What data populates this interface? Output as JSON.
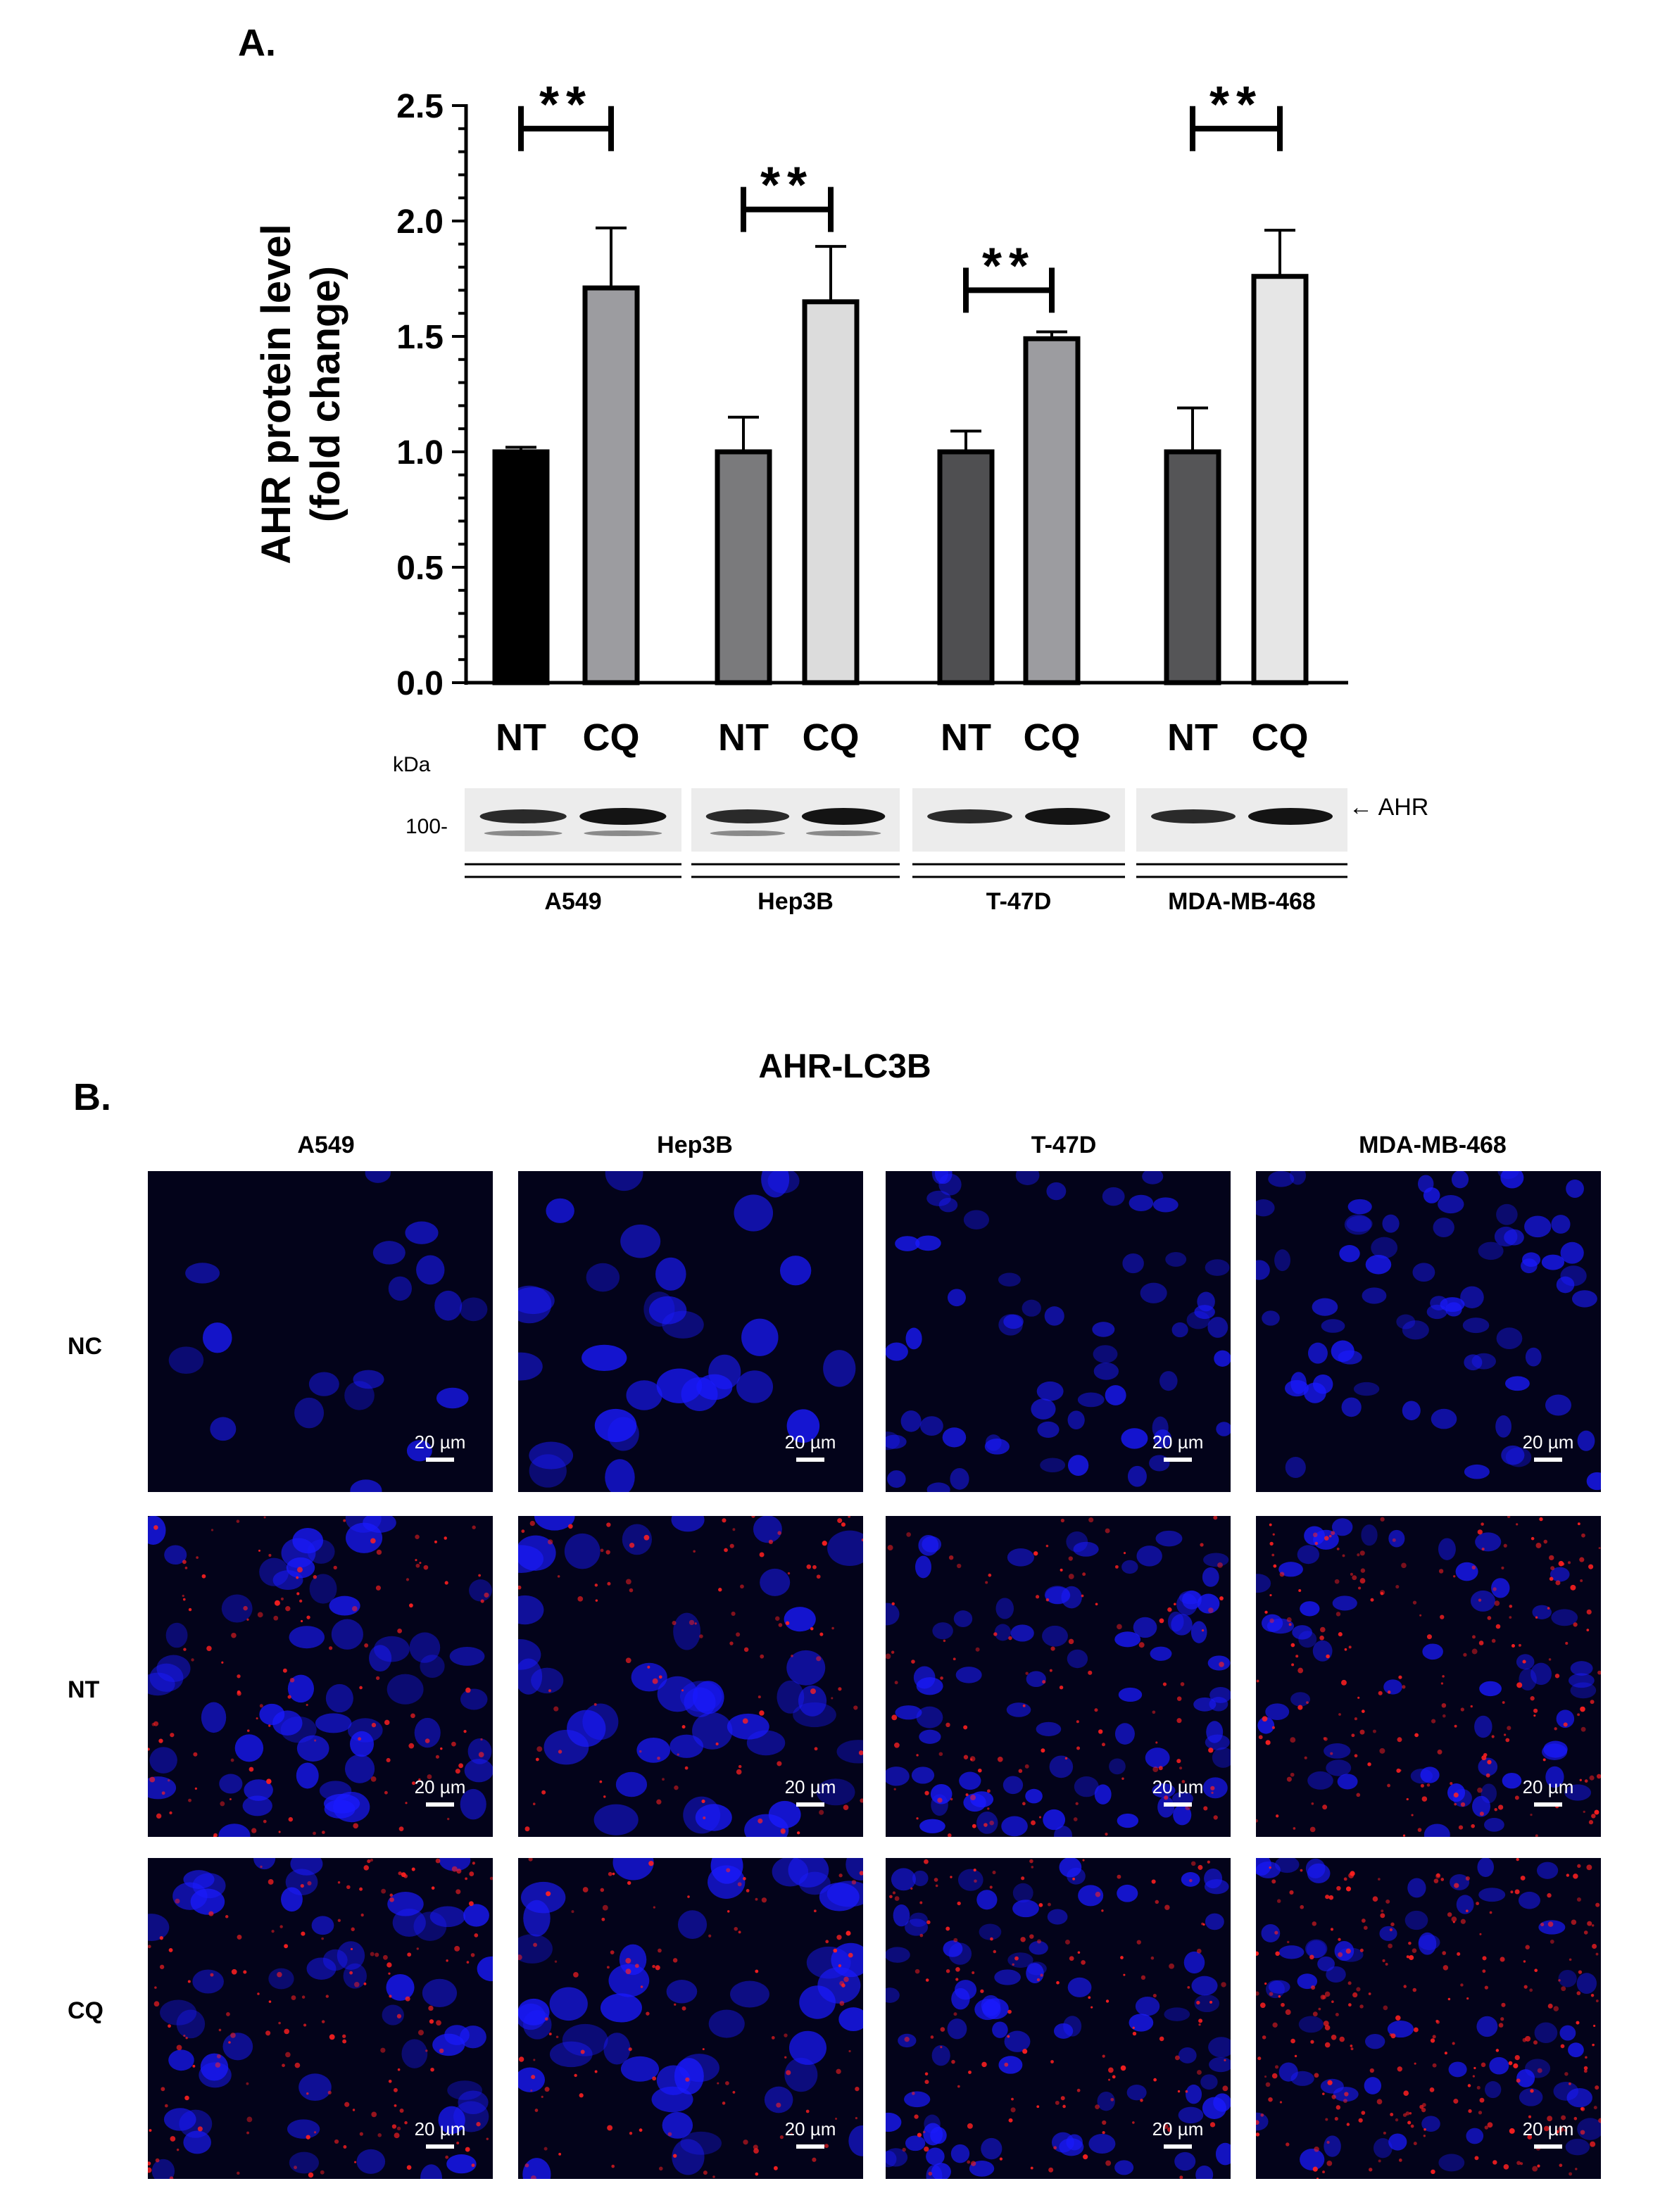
{
  "panel_a_label": "A.",
  "panel_b_label": "B.",
  "chart_data": {
    "type": "bar",
    "ylabel_line1": "AHR protein level",
    "ylabel_line2": "(fold change)",
    "ylim": [
      0,
      2.5
    ],
    "yticks": [
      "0.0",
      "0.5",
      "1.0",
      "1.5",
      "2.0",
      "2.5"
    ],
    "groups": [
      "A549",
      "Hep3B",
      "T-47D",
      "MDA-MB-468"
    ],
    "categories": [
      "NT",
      "CQ",
      "NT",
      "CQ",
      "NT",
      "CQ",
      "NT",
      "CQ"
    ],
    "values": [
      1.0,
      1.71,
      1.0,
      1.65,
      1.0,
      1.49,
      1.0,
      1.76
    ],
    "errors": [
      0.02,
      0.26,
      0.15,
      0.24,
      0.09,
      0.03,
      0.19,
      0.2
    ],
    "colors": [
      "#000000",
      "#9c9ca0",
      "#7a7a7c",
      "#dcdcdc",
      "#4f4f51",
      "#9c9ca0",
      "#555557",
      "#e6e6e6"
    ],
    "significance": [
      {
        "from": 0,
        "to": 1,
        "label": "**",
        "y": 2.4
      },
      {
        "from": 2,
        "to": 3,
        "label": "**",
        "y": 2.05
      },
      {
        "from": 4,
        "to": 5,
        "label": "**",
        "y": 1.7
      },
      {
        "from": 6,
        "to": 7,
        "label": "**",
        "y": 2.4
      }
    ]
  },
  "blot": {
    "kda_label": "kDa",
    "marker_label": "100-",
    "band_label": "← AHR"
  },
  "panel_b": {
    "title": "AHR-LC3B",
    "columns": [
      "A549",
      "Hep3B",
      "T-47D",
      "MDA-MB-468"
    ],
    "rows": [
      "NC",
      "NT",
      "CQ"
    ],
    "scale_label": "20 µm",
    "colors": {
      "nucleus": "#1a1aff",
      "puncta": "#ff2020",
      "background": "#03031a"
    }
  }
}
